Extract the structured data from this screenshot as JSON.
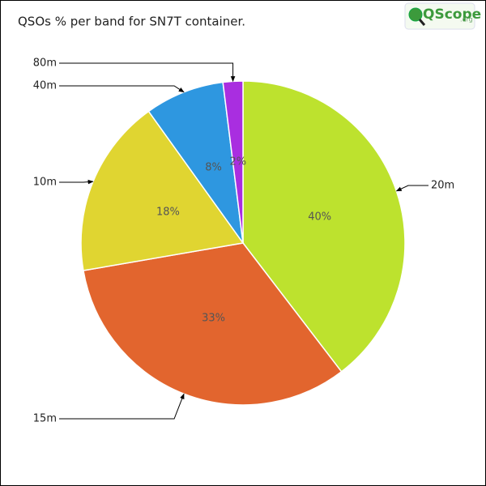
{
  "chart_data": {
    "type": "pie",
    "title": "QSOs % per band for SN7T container.",
    "logo": "QScope",
    "logo_suffix": ".org",
    "categories": [
      "20m",
      "15m",
      "10m",
      "40m",
      "80m"
    ],
    "values": [
      40,
      33,
      18,
      8,
      2
    ],
    "value_labels": [
      "40%",
      "33%",
      "18%",
      "8%",
      "2%"
    ],
    "colors": [
      "#bde22e",
      "#e2652e",
      "#e0d531",
      "#2e97e0",
      "#a92ee0"
    ]
  }
}
